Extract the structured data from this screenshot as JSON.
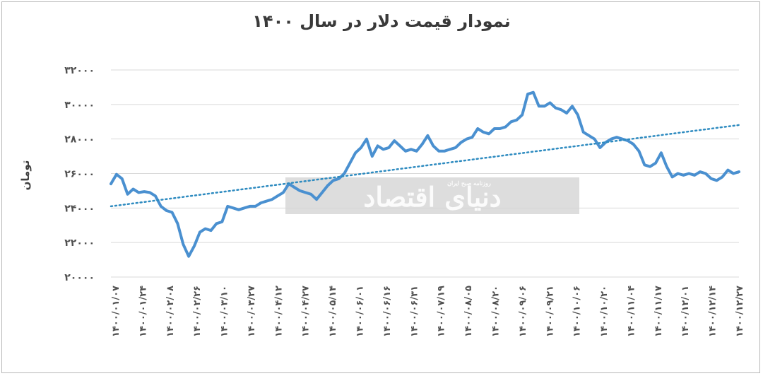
{
  "chart_data": {
    "type": "line",
    "title": "نمودار قیمت دلار در سال ۱۴۰۰",
    "ylabel": "تومان",
    "ylim": [
      20000,
      32000
    ],
    "yticks": [
      "۲۰۰۰۰",
      "۲۲۰۰۰",
      "۲۴۰۰۰",
      "۲۶۰۰۰",
      "۲۸۰۰۰",
      "۳۰۰۰۰",
      "۳۲۰۰۰"
    ],
    "ytick_values": [
      20000,
      22000,
      24000,
      26000,
      28000,
      30000,
      32000
    ],
    "xticks": [
      "۱۴۰۰/۰۱/۰۷",
      "۱۴۰۰/۰۱/۲۴",
      "۱۴۰۰/۰۲/۰۸",
      "۱۴۰۰/۰۲/۲۶",
      "۱۴۰۰/۰۳/۱۰",
      "۱۴۰۰/۰۳/۲۷",
      "۱۴۰۰/۰۴/۱۲",
      "۱۴۰۰/۰۴/۲۷",
      "۱۴۰۰/۰۵/۱۴",
      "۱۴۰۰/۰۶/۰۱",
      "۱۴۰۰/۰۶/۱۶",
      "۱۴۰۰/۰۶/۳۱",
      "۱۴۰۰/۰۷/۱۹",
      "۱۴۰۰/۰۸/۰۵",
      "۱۴۰۰/۰۸/۲۰",
      "۱۴۰۰/۰۹/۰۶",
      "۱۴۰۰/۰۹/۲۱",
      "۱۴۰۰/۱۰/۰۶",
      "۱۴۰۰/۱۰/۲۰",
      "۱۴۰۰/۱۱/۰۴",
      "۱۴۰۰/۱۱/۱۷",
      "۱۴۰۰/۱۲/۰۱",
      "۱۴۰۰/۱۲/۱۴",
      "۱۴۰۰/۱۲/۲۷"
    ],
    "grid": true,
    "series": [
      {
        "color": "#4a90d0",
        "values": [
          25400,
          25950,
          25700,
          24800,
          25100,
          24900,
          24950,
          24900,
          24700,
          24100,
          23850,
          23750,
          23100,
          21900,
          21200,
          21800,
          22600,
          22800,
          22700,
          23100,
          23200,
          24100,
          24000,
          23900,
          24000,
          24100,
          24100,
          24300,
          24400,
          24500,
          24700,
          24900,
          25400,
          25200,
          25000,
          24900,
          24800,
          24500,
          24900,
          25300,
          25600,
          25700,
          26000,
          26600,
          27200,
          27500,
          28000,
          27000,
          27600,
          27400,
          27500,
          27900,
          27600,
          27300,
          27400,
          27300,
          27700,
          28200,
          27600,
          27300,
          27300,
          27400,
          27500,
          27800,
          28000,
          28100,
          28600,
          28400,
          28300,
          28600,
          28600,
          28700,
          29000,
          29100,
          29400,
          30600,
          30700,
          29900,
          29900,
          30100,
          29800,
          29700,
          29500,
          29900,
          29400,
          28400,
          28200,
          28000,
          27500,
          27800,
          28000,
          28100,
          28000,
          27900,
          27700,
          27300,
          26500,
          26400,
          26600,
          27200,
          26400,
          25800,
          26000,
          25900,
          26000,
          25900,
          26100,
          26000,
          25700,
          25600,
          25800,
          26200,
          26000,
          26100
        ]
      },
      {
        "name": "Linear",
        "type": "trendline",
        "color": "#2e8bc0",
        "values": [
          24100,
          28810
        ]
      }
    ]
  },
  "watermark": {
    "main_text": "دنیای اقتصاد",
    "sub_text": "روزنامه صبح ایران"
  }
}
